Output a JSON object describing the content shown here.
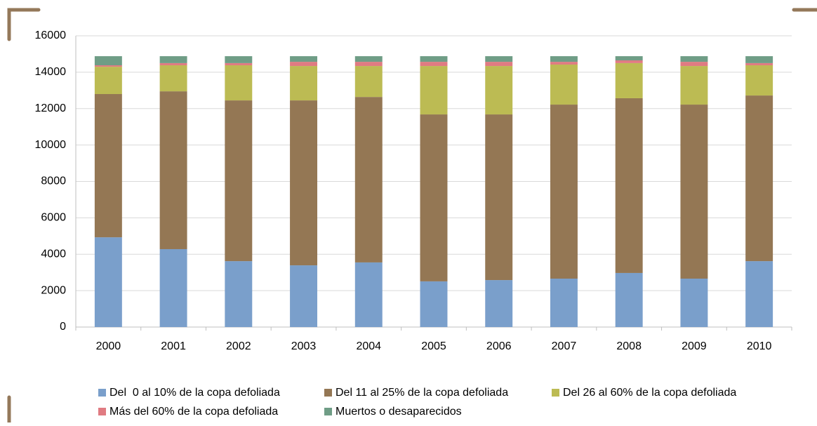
{
  "chart_data": {
    "type": "stacked-bar",
    "categories": [
      "2000",
      "2001",
      "2002",
      "2003",
      "2004",
      "2005",
      "2006",
      "2007",
      "2008",
      "2009",
      "2010"
    ],
    "series": [
      {
        "name": "Del  0 al 10% de la copa defoliada",
        "color": "#7a9fcb",
        "values": [
          4930,
          4280,
          3620,
          3390,
          3550,
          2510,
          2580,
          2660,
          2970,
          2660,
          3620
        ]
      },
      {
        "name": "Del 11 al 25% de la copa defoliada",
        "color": "#947754",
        "values": [
          7870,
          8670,
          8830,
          9060,
          9090,
          9170,
          9100,
          9560,
          9600,
          9560,
          9100
        ]
      },
      {
        "name": "Del 26 al 60% de la copa defoliada",
        "color": "#bcbb53",
        "values": [
          1500,
          1430,
          1930,
          1890,
          1700,
          2660,
          2660,
          2200,
          1930,
          2120,
          1660
        ]
      },
      {
        "name": "Más del 60% de la copa defoliada",
        "color": "#e07b82",
        "values": [
          80,
          120,
          120,
          230,
          230,
          230,
          230,
          150,
          150,
          230,
          120
        ]
      },
      {
        "name": "Muertos o desaparecidos",
        "color": "#6f9d86",
        "values": [
          500,
          380,
          380,
          310,
          310,
          310,
          310,
          310,
          230,
          310,
          380
        ]
      }
    ],
    "ylim": [
      0,
      16000
    ],
    "yticks": [
      0,
      2000,
      4000,
      6000,
      8000,
      10000,
      12000,
      14000,
      16000
    ],
    "grid": true
  }
}
